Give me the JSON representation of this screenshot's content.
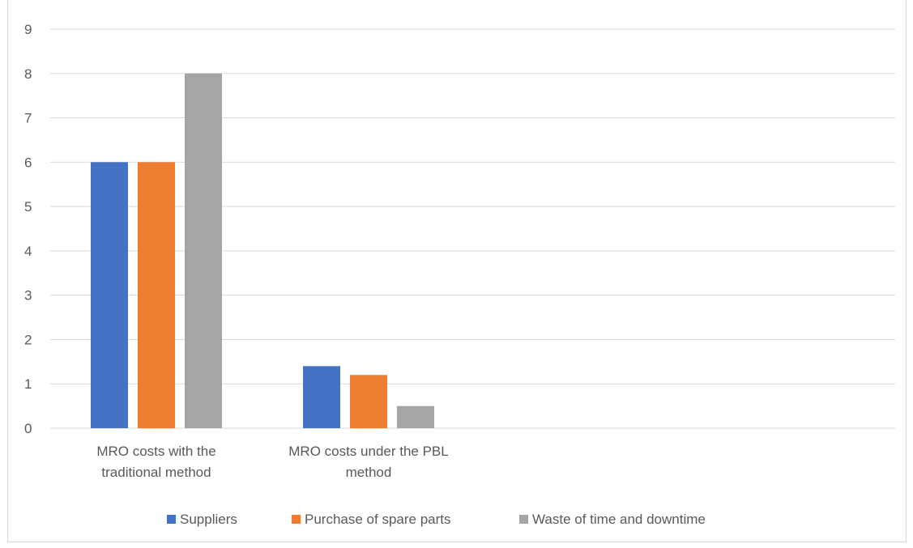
{
  "chart_data": {
    "type": "bar",
    "title": "",
    "xlabel": "",
    "ylabel": "",
    "categories": [
      [
        "MRO costs with the",
        "traditional method"
      ],
      [
        "MRO costs under the PBL",
        "method"
      ]
    ],
    "series": [
      {
        "name": "Suppliers",
        "values": [
          6,
          1.4
        ],
        "color": "#4472C4"
      },
      {
        "name": "Purchase of spare parts",
        "values": [
          6,
          1.2
        ],
        "color": "#ED7D31"
      },
      {
        "name": "Waste of time and downtime",
        "values": [
          8,
          0.5
        ],
        "color": "#A5A5A5"
      }
    ],
    "ylim": [
      0,
      9
    ],
    "yticks": [
      0,
      1,
      2,
      3,
      4,
      5,
      6,
      7,
      8,
      9
    ],
    "grid": true,
    "legend_position": "bottom"
  }
}
